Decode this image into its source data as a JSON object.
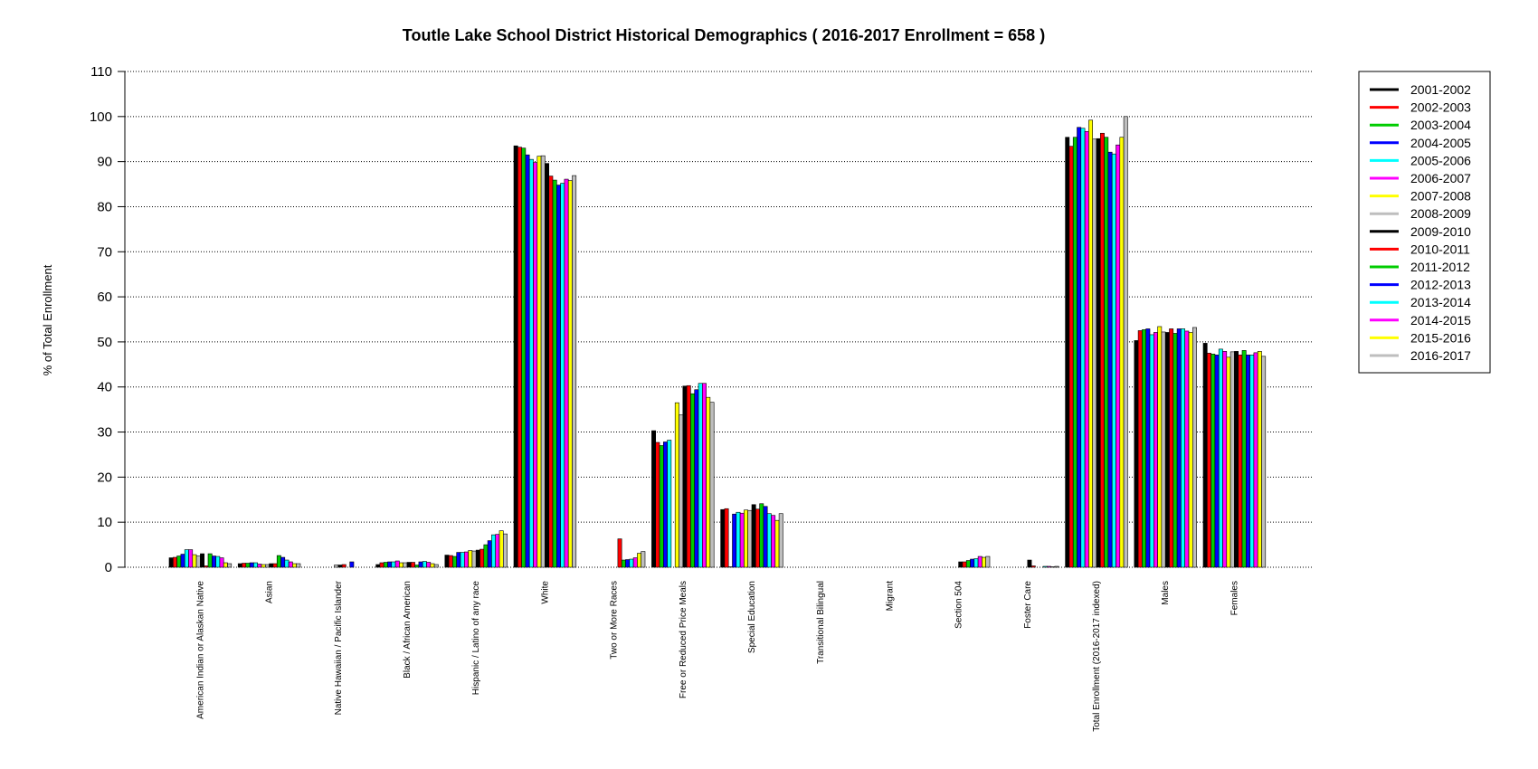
{
  "chart_data": {
    "type": "bar",
    "title": "Toutle Lake School District Historical Demographics  ( 2016-2017 Enrollment =  658 )",
    "ylabel": "% of Total Enrollment",
    "xlabel": "",
    "ylim": [
      0,
      110
    ],
    "yticks": [
      0,
      10,
      20,
      30,
      40,
      50,
      60,
      70,
      80,
      90,
      100,
      110
    ],
    "grid": "horizontal dotted",
    "legend_position": "right",
    "categories": [
      "American Indian or Alaskan Native",
      "Asian",
      "Native Hawaiian / Pacific Islander",
      "Black / African American",
      "Hispanic / Latino of any race",
      "White",
      "Two or More Races",
      "Free or Reduced Price Meals",
      "Special Education",
      "Transitional Bilingual",
      "Migrant",
      "Section 504",
      "Foster Care",
      "Total Enrollment (2016-2017 indexed)",
      "Males",
      "Females"
    ],
    "series": [
      {
        "name": "2001-2002",
        "color": "#000000",
        "values": [
          2.1,
          0.8,
          0.0,
          0.6,
          2.7,
          93.5,
          0.0,
          30.3,
          12.8,
          0.0,
          0.0,
          0.0,
          0.0,
          95.4,
          50.3,
          49.7
        ]
      },
      {
        "name": "2002-2003",
        "color": "#ff0000",
        "values": [
          2.2,
          0.9,
          0.0,
          1.0,
          2.6,
          93.2,
          0.0,
          27.7,
          13.0,
          0.0,
          0.0,
          0.0,
          0.0,
          93.4,
          52.5,
          47.5
        ]
      },
      {
        "name": "2003-2004",
        "color": "#00cc00",
        "values": [
          2.5,
          0.9,
          0.0,
          1.1,
          2.4,
          93.0,
          0.0,
          27.0,
          0.1,
          0.0,
          0.0,
          0.0,
          0.0,
          95.4,
          52.7,
          47.3
        ]
      },
      {
        "name": "2004-2005",
        "color": "#0000ff",
        "values": [
          2.9,
          1.0,
          0.0,
          1.2,
          3.3,
          91.5,
          0.0,
          27.8,
          11.8,
          0.0,
          0.0,
          0.0,
          0.0,
          97.6,
          52.9,
          47.1
        ]
      },
      {
        "name": "2005-2006",
        "color": "#00ffff",
        "values": [
          3.9,
          1.0,
          0.0,
          1.2,
          3.3,
          90.5,
          0.0,
          28.2,
          12.2,
          0.0,
          0.0,
          0.0,
          0.0,
          97.4,
          51.6,
          48.4
        ]
      },
      {
        "name": "2006-2007",
        "color": "#ff00ff",
        "values": [
          3.9,
          0.7,
          0.0,
          1.4,
          3.4,
          89.8,
          0.0,
          0.0,
          12.0,
          0.0,
          0.0,
          0.0,
          0.0,
          96.7,
          52.1,
          47.9
        ]
      },
      {
        "name": "2007-2008",
        "color": "#ffff00",
        "values": [
          2.8,
          0.6,
          0.0,
          1.0,
          3.7,
          91.2,
          0.0,
          36.5,
          12.7,
          0.0,
          0.0,
          0.0,
          0.0,
          99.2,
          53.4,
          46.6
        ]
      },
      {
        "name": "2008-2009",
        "color": "#bebebe",
        "values": [
          2.5,
          0.6,
          0.5,
          1.0,
          3.6,
          91.3,
          0.0,
          33.8,
          12.6,
          0.0,
          0.0,
          0.0,
          0.0,
          95.0,
          52.2,
          47.8
        ]
      },
      {
        "name": "2009-2010",
        "color": "#000000",
        "values": [
          3.0,
          0.8,
          0.5,
          1.1,
          3.8,
          89.6,
          0.0,
          40.2,
          13.9,
          0.0,
          0.0,
          1.2,
          1.6,
          95.1,
          52.1,
          47.9
        ]
      },
      {
        "name": "2010-2011",
        "color": "#ff0000",
        "values": [
          0.3,
          0.8,
          0.6,
          1.1,
          4.0,
          86.8,
          6.3,
          40.3,
          12.9,
          0.0,
          0.0,
          1.2,
          0.3,
          96.3,
          52.9,
          47.1
        ]
      },
      {
        "name": "2011-2012",
        "color": "#00cc00",
        "values": [
          3.0,
          2.6,
          0.0,
          0.5,
          5.0,
          85.9,
          1.6,
          38.5,
          14.1,
          0.0,
          0.0,
          1.5,
          0.0,
          95.4,
          51.9,
          48.1
        ]
      },
      {
        "name": "2012-2013",
        "color": "#0000ff",
        "values": [
          2.5,
          2.2,
          1.2,
          1.2,
          5.9,
          84.8,
          1.7,
          39.4,
          13.5,
          0.0,
          0.0,
          1.8,
          0.0,
          92.1,
          52.9,
          47.1
        ]
      },
      {
        "name": "2013-2014",
        "color": "#00ffff",
        "values": [
          2.4,
          1.6,
          0.0,
          1.3,
          7.2,
          85.2,
          1.8,
          40.8,
          11.9,
          0.0,
          0.0,
          1.9,
          0.2,
          91.7,
          52.9,
          47.1
        ]
      },
      {
        "name": "2014-2015",
        "color": "#ff00ff",
        "values": [
          2.1,
          1.2,
          0.0,
          1.1,
          7.3,
          86.1,
          2.1,
          40.8,
          11.5,
          0.0,
          0.0,
          2.4,
          0.2,
          93.7,
          52.4,
          47.6
        ]
      },
      {
        "name": "2015-2016",
        "color": "#ffff00",
        "values": [
          1.0,
          0.8,
          0.0,
          0.8,
          8.1,
          85.8,
          3.1,
          37.7,
          10.4,
          0.0,
          0.0,
          2.2,
          0.1,
          95.4,
          52.1,
          47.9
        ]
      },
      {
        "name": "2016-2017",
        "color": "#bebebe",
        "values": [
          0.8,
          0.8,
          0.0,
          0.6,
          7.4,
          86.9,
          3.5,
          36.6,
          11.9,
          0.0,
          0.0,
          2.4,
          0.2,
          100.0,
          53.2,
          46.8
        ]
      }
    ]
  }
}
